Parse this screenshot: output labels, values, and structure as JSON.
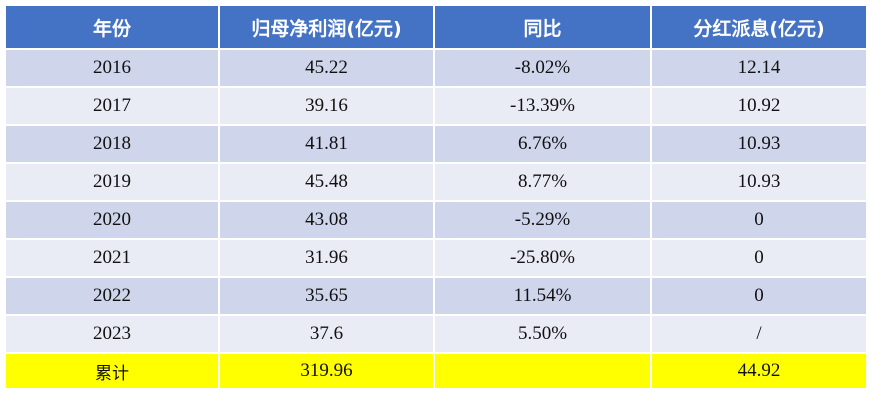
{
  "table": {
    "header": [
      "年份",
      "归母净利润(亿元)",
      "同比",
      "分红派息(亿元)"
    ],
    "rows": [
      [
        "2016",
        "45.22",
        "-8.02%",
        "12.14"
      ],
      [
        "2017",
        "39.16",
        "-13.39%",
        "10.92"
      ],
      [
        "2018",
        "41.81",
        "6.76%",
        "10.93"
      ],
      [
        "2019",
        "45.48",
        "8.77%",
        "10.93"
      ],
      [
        "2020",
        "43.08",
        "-5.29%",
        "0"
      ],
      [
        "2021",
        "31.96",
        "-25.80%",
        "0"
      ],
      [
        "2022",
        "35.65",
        "11.54%",
        "0"
      ],
      [
        "2023",
        "37.6",
        "5.50%",
        "/"
      ]
    ],
    "total": {
      "label": "累计",
      "profit": "319.96",
      "dividend": "44.92"
    }
  }
}
